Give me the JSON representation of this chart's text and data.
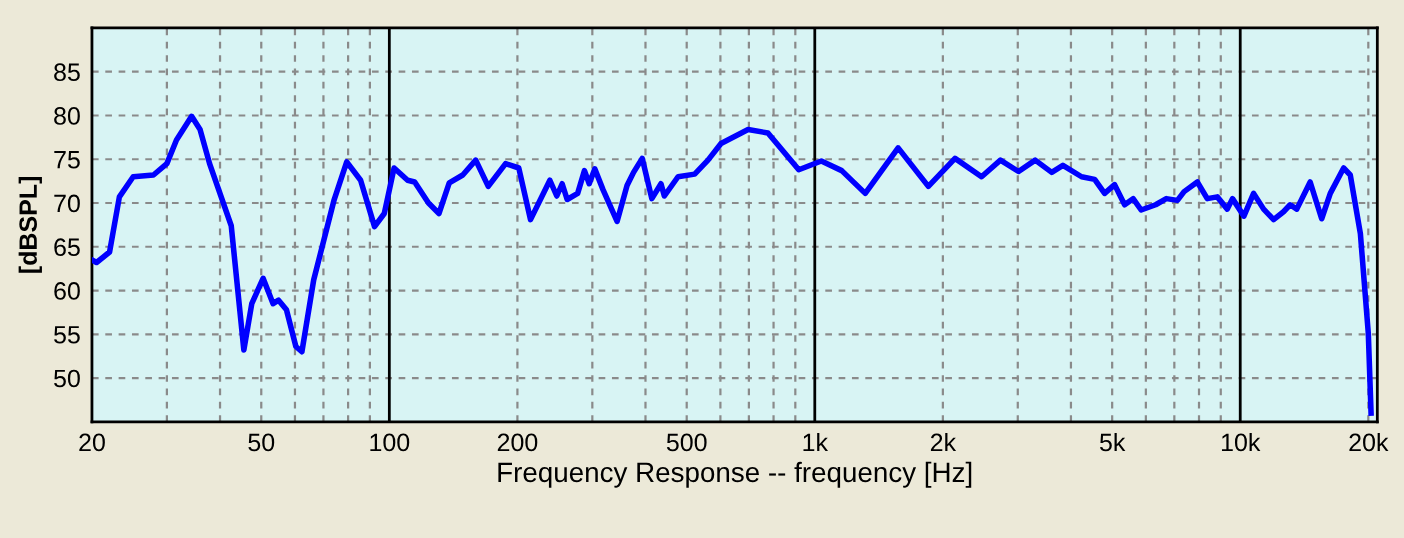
{
  "chart_data": {
    "type": "line",
    "xlabel": "Frequency Response -- frequency [Hz]",
    "ylabel": "[dBSPL]",
    "log": "x",
    "grid": true,
    "line_style": "solid",
    "marker": "none",
    "xlim": [
      20,
      21000
    ],
    "ylim": [
      45,
      90
    ],
    "xticks": [
      20,
      50,
      100,
      200,
      500,
      {
        "value": 1000,
        "label": "1k"
      },
      {
        "value": 2000,
        "label": "2k"
      },
      {
        "value": 5000,
        "label": "5k"
      },
      {
        "value": 10000,
        "label": "10k"
      },
      {
        "value": 20000,
        "label": "20k"
      }
    ],
    "yticks": [
      50,
      55,
      60,
      65,
      70,
      75,
      80,
      85
    ],
    "series": [
      {
        "color": "#0000ff",
        "x": [
          20,
          20.5,
          22,
          23.2,
          25,
          27.9,
          30,
          31.6,
          34.3,
          35.9,
          37.8,
          42.5,
          45.5,
          47.5,
          50.5,
          53.3,
          54.9,
          57.3,
          60.3,
          62.3,
          66.4,
          74.2,
          79.4,
          85.6,
          92.3,
          97.3,
          102.6,
          110.4,
          114.7,
          123.6,
          130.8,
          138.3,
          148.8,
          159.6,
          170.8,
          187.6,
          201.5,
          214.7,
          238.4,
          247.5,
          254.8,
          261.8,
          277.1,
          287.5,
          295,
          304,
          318,
          343,
          362,
          375,
          393,
          414,
          435,
          443,
          477,
          522,
          561,
          602,
          697,
          776,
          917,
          1036,
          1157,
          1314,
          1570,
          1849,
          2136,
          2466,
          2731,
          3012,
          3297,
          3605,
          3830,
          4237,
          4548,
          4800,
          5066,
          5349,
          5600,
          5850,
          6327,
          6702,
          7117,
          7380,
          7927,
          8366,
          8831,
          9323,
          9590,
          10200,
          10750,
          11350,
          11980,
          12640,
          13100,
          13580,
          14600,
          15540,
          16280,
          17500,
          18140,
          19160,
          20000,
          20300
        ],
        "values": [
          63.5,
          63.2,
          64.4,
          70.7,
          73.0,
          73.2,
          74.5,
          77.2,
          79.9,
          78.4,
          74.5,
          67.4,
          53.2,
          58.5,
          61.4,
          58.5,
          58.9,
          57.8,
          53.6,
          53.0,
          61.2,
          70.4,
          74.7,
          72.6,
          67.3,
          68.8,
          74.0,
          72.6,
          72.4,
          70.0,
          68.8,
          72.3,
          73.2,
          74.9,
          71.9,
          74.5,
          74.0,
          68.1,
          72.6,
          70.8,
          72.2,
          70.4,
          71.1,
          73.7,
          72.2,
          73.9,
          71.5,
          67.9,
          72.0,
          73.5,
          75.1,
          70.5,
          72.2,
          70.8,
          73.0,
          73.3,
          74.9,
          76.8,
          78.4,
          78.0,
          73.8,
          74.8,
          73.7,
          71.1,
          76.3,
          71.9,
          75.1,
          73.0,
          74.9,
          73.6,
          74.9,
          73.5,
          74.3,
          73.0,
          72.7,
          71.1,
          72.1,
          69.8,
          70.5,
          69.2,
          69.8,
          70.5,
          70.3,
          71.3,
          72.4,
          70.5,
          70.7,
          69.3,
          70.5,
          68.5,
          71.1,
          69.3,
          68.1,
          69.0,
          69.8,
          69.3,
          72.4,
          68.2,
          71.1,
          74.0,
          73.2,
          66.5,
          55.1,
          46
        ]
      }
    ]
  }
}
